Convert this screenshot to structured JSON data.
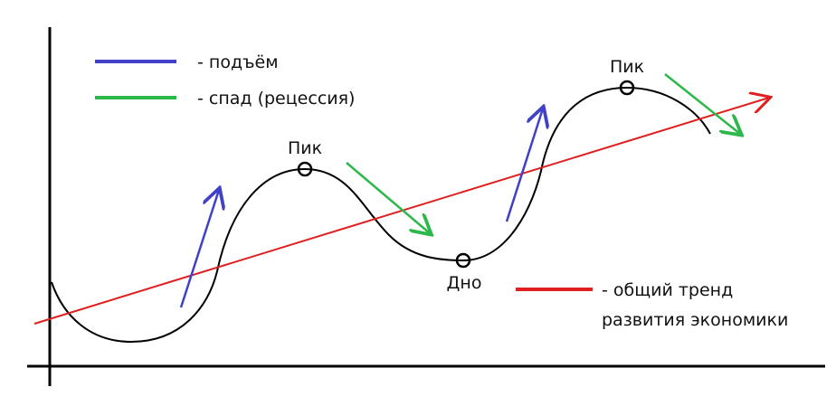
{
  "legend": [
    {
      "label": "- подъём"
    },
    {
      "label": "- спад (рецессия)"
    }
  ],
  "points": [
    {
      "label": "Пик"
    },
    {
      "label": "Дно"
    },
    {
      "label": "Пик"
    }
  ],
  "trend_label": [
    "- общий тренд",
    "развития экономики"
  ]
}
